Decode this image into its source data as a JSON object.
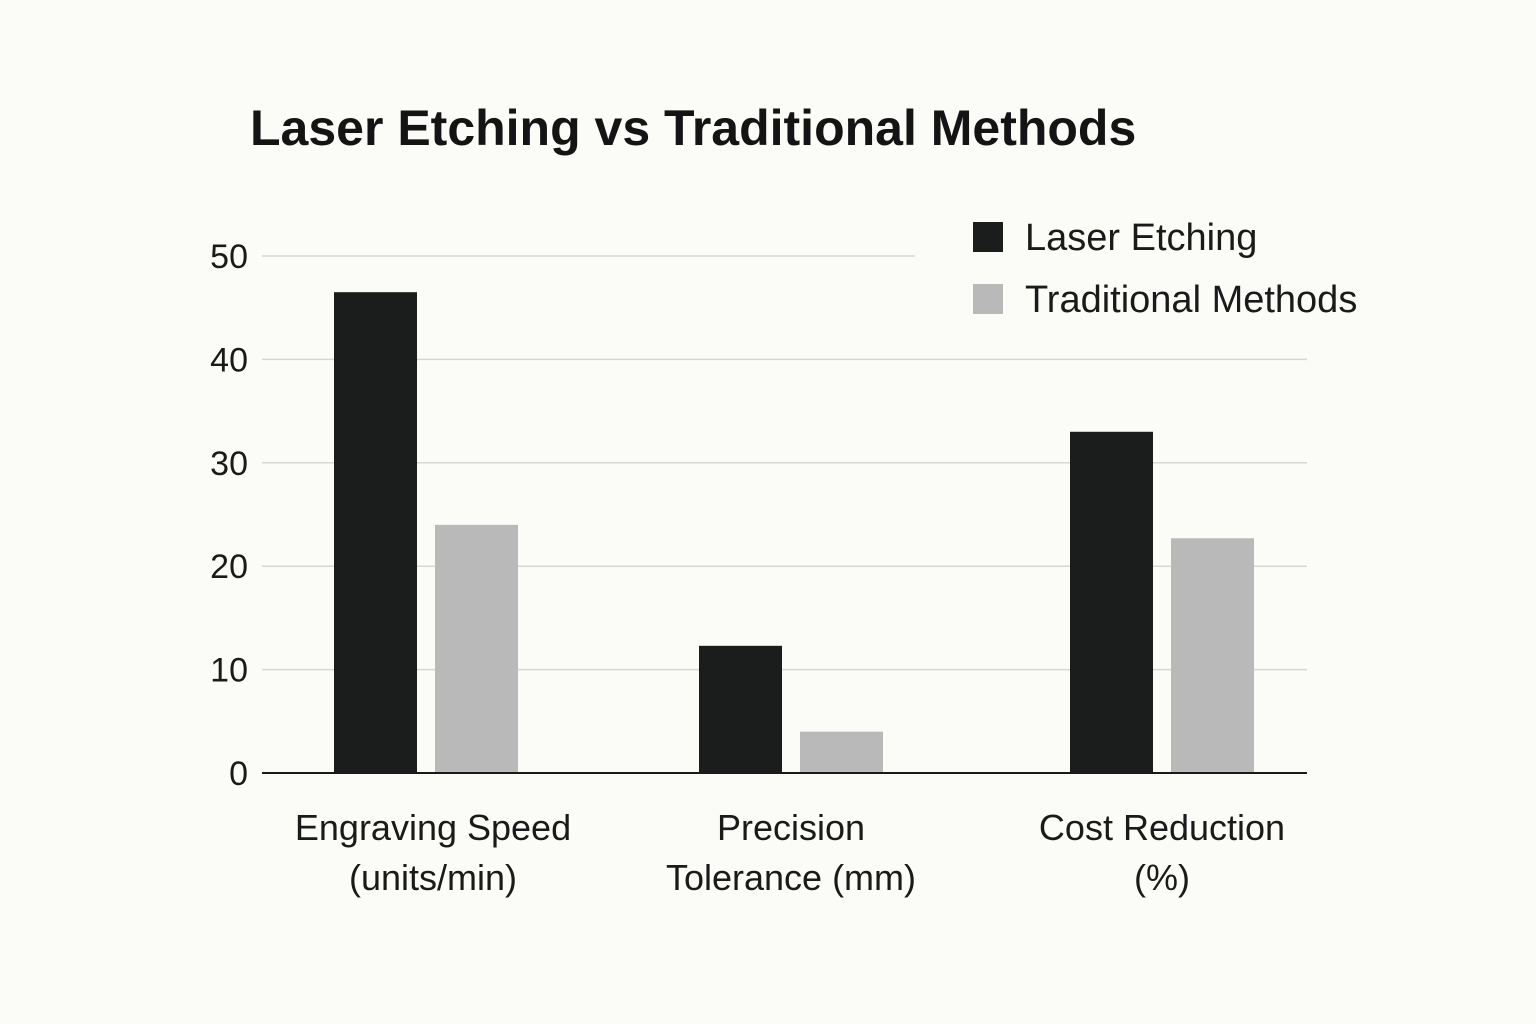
{
  "chart_data": {
    "type": "bar",
    "title": "Laser Etching vs Traditional Methods",
    "categories": [
      [
        "Engraving Speed",
        "(units/min)"
      ],
      [
        "Precision",
        "Tolerance (mm)"
      ],
      [
        "Cost Reduction",
        "(%)"
      ]
    ],
    "series": [
      {
        "name": "Laser Etching",
        "color": "#1b1c1c",
        "values": [
          46.5,
          12.3,
          33
        ]
      },
      {
        "name": "Traditional Methods",
        "color": "#b9b9b9",
        "values": [
          24,
          4,
          22.7
        ]
      }
    ],
    "ylim": [
      0,
      50
    ],
    "yticks": [
      "0",
      "10",
      "20",
      "30",
      "40",
      "50"
    ],
    "grid": true,
    "legend_position": "top-right",
    "xlabel": "",
    "ylabel": ""
  }
}
